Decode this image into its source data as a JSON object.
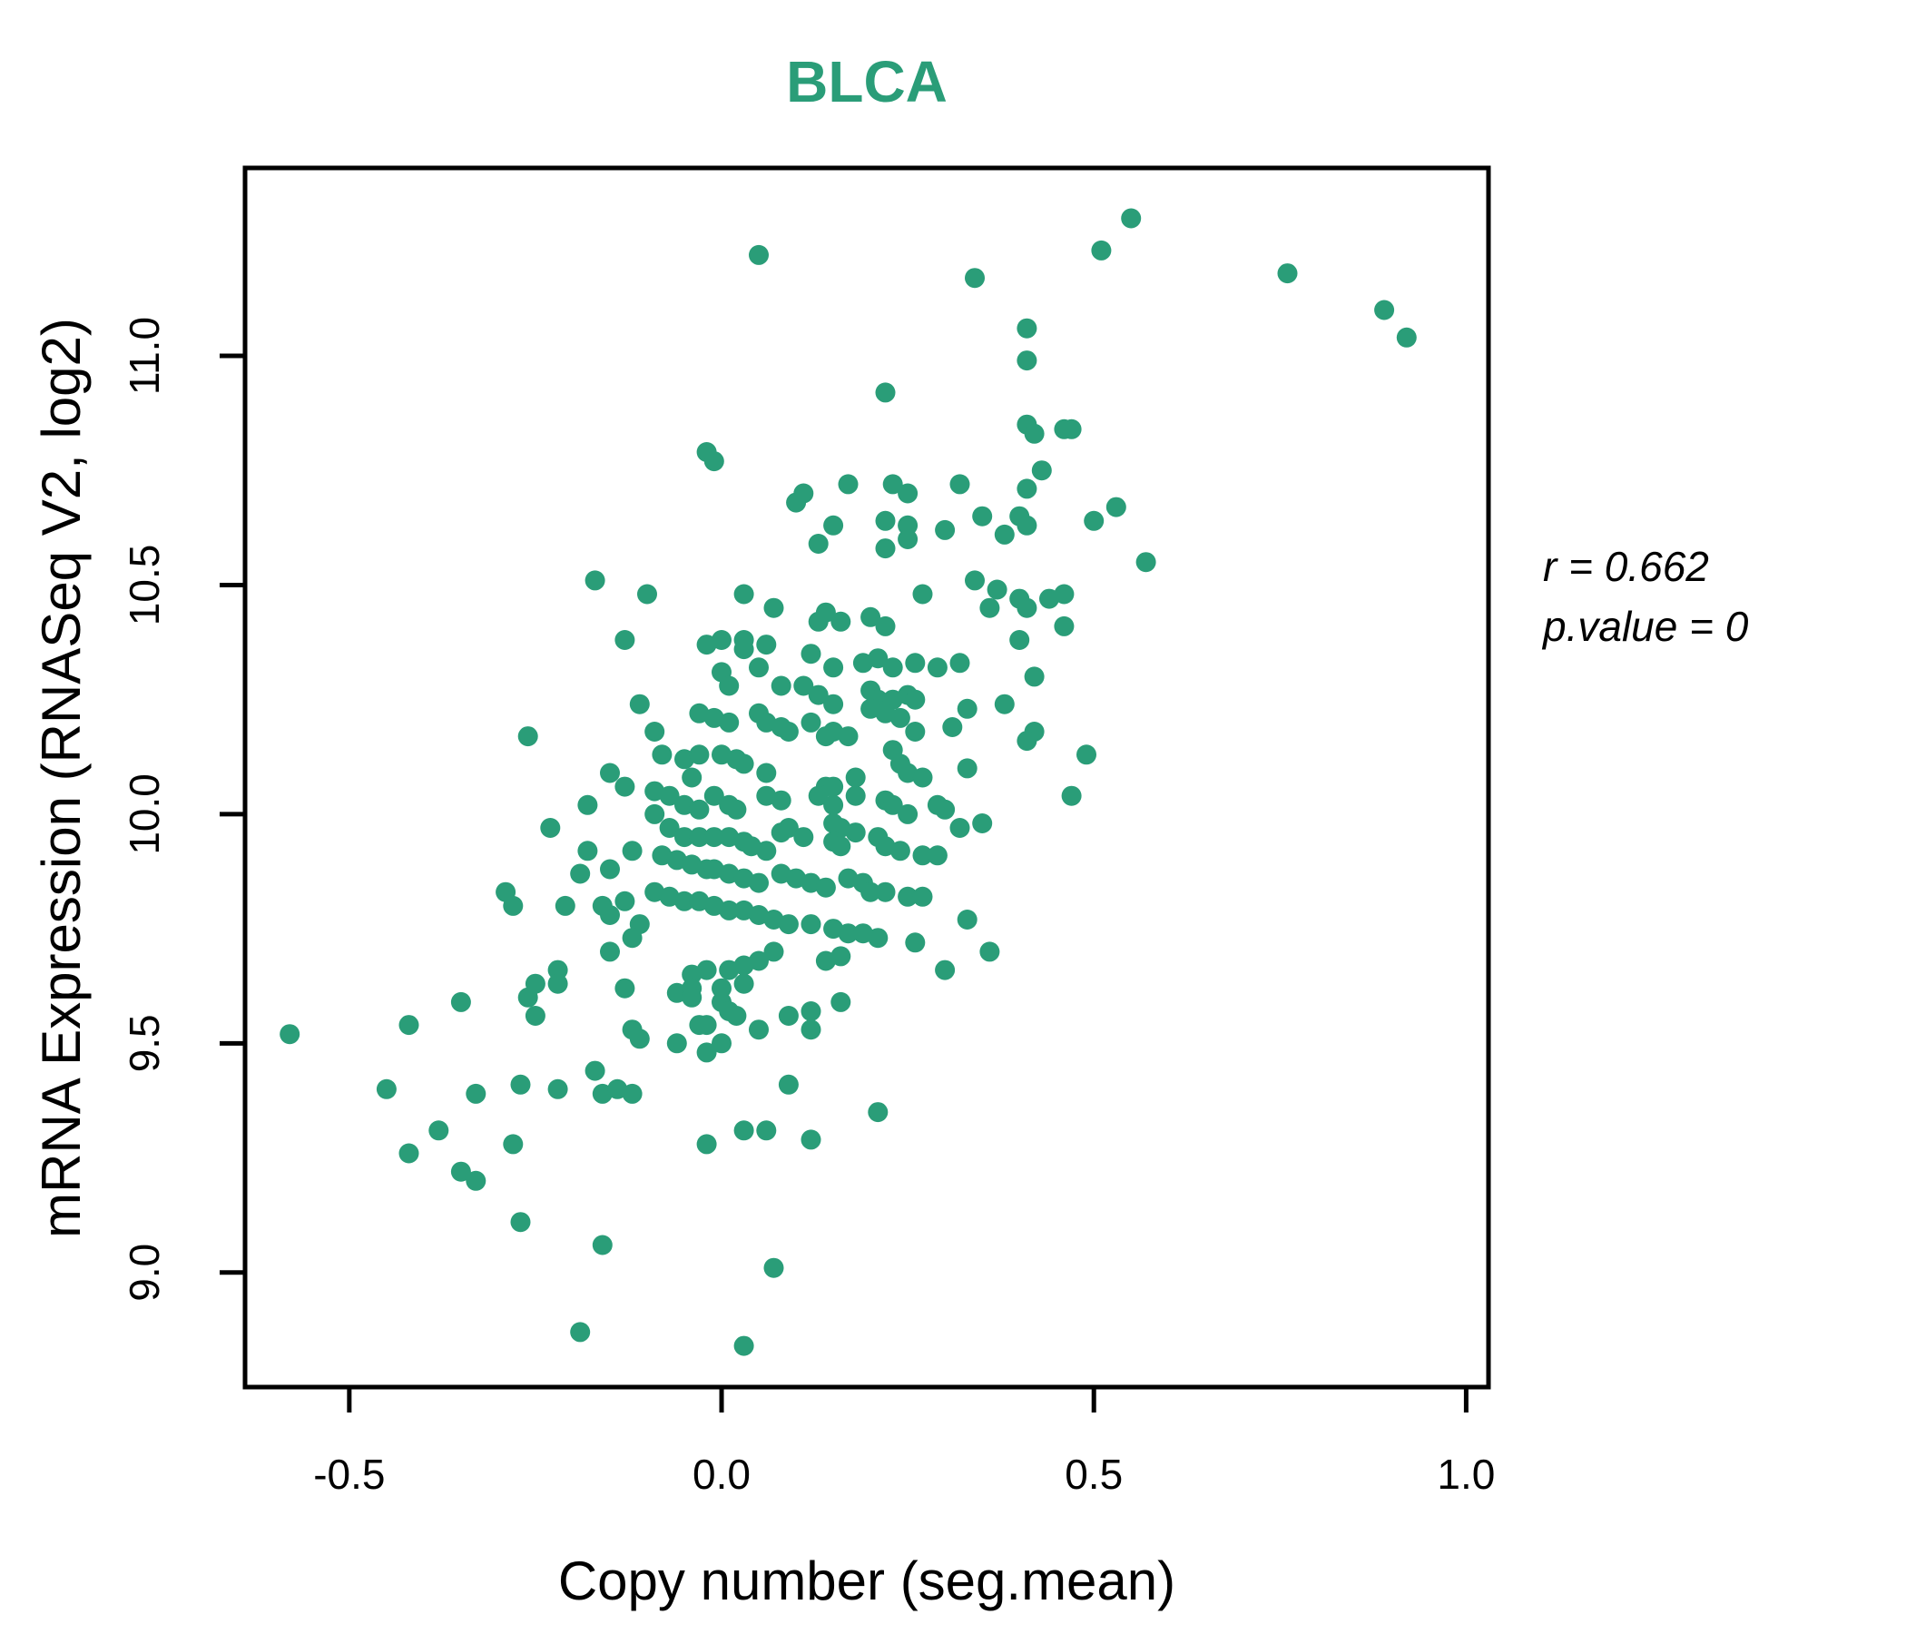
{
  "title": "BLCA",
  "accent_color": "#2a9d78",
  "text_color": "#000000",
  "annotation": {
    "line1": "r = 0.662",
    "line2": "p.value = 0"
  },
  "chart_data": {
    "type": "scatter",
    "title": "BLCA",
    "xlabel": "Copy number (seg.mean)",
    "ylabel": "mRNA Expression (RNASeq V2, log2)",
    "x_ticks": [
      -0.5,
      0.0,
      0.5,
      1.0
    ],
    "y_ticks": [
      9.0,
      9.5,
      10.0,
      10.5,
      11.0
    ],
    "xlim": [
      -0.64,
      1.03
    ],
    "ylim": [
      8.75,
      11.41
    ],
    "grid": false,
    "legend": null,
    "point_color": "#2a9d78",
    "point_radius_px": 11,
    "correlation_r": 0.662,
    "p_value": 0,
    "points": [
      [
        0.05,
        11.22
      ],
      [
        0.34,
        11.17
      ],
      [
        0.41,
        11.06
      ],
      [
        0.41,
        10.99
      ],
      [
        0.22,
        10.92
      ],
      [
        0.41,
        10.85
      ],
      [
        0.42,
        10.83
      ],
      [
        0.46,
        10.84
      ],
      [
        -0.02,
        10.79
      ],
      [
        -0.01,
        10.77
      ],
      [
        0.43,
        10.75
      ],
      [
        0.17,
        10.72
      ],
      [
        0.23,
        10.72
      ],
      [
        0.25,
        10.7
      ],
      [
        0.32,
        10.72
      ],
      [
        0.11,
        10.7
      ],
      [
        0.1,
        10.68
      ],
      [
        0.41,
        10.71
      ],
      [
        0.35,
        10.65
      ],
      [
        0.4,
        10.65
      ],
      [
        0.22,
        10.64
      ],
      [
        0.25,
        10.63
      ],
      [
        0.15,
        10.63
      ],
      [
        0.3,
        10.62
      ],
      [
        0.38,
        10.61
      ],
      [
        0.25,
        10.6
      ],
      [
        0.13,
        10.59
      ],
      [
        0.22,
        10.58
      ],
      [
        0.41,
        10.63
      ],
      [
        0.55,
        11.3
      ],
      [
        0.51,
        11.23
      ],
      [
        0.76,
        11.18
      ],
      [
        0.89,
        11.1
      ],
      [
        0.92,
        11.04
      ],
      [
        0.47,
        10.84
      ],
      [
        0.53,
        10.67
      ],
      [
        0.5,
        10.64
      ],
      [
        0.57,
        10.55
      ],
      [
        0.46,
        10.48
      ],
      [
        0.49,
        10.13
      ],
      [
        0.47,
        10.04
      ],
      [
        -0.17,
        10.51
      ],
      [
        -0.1,
        10.48
      ],
      [
        -0.13,
        10.38
      ],
      [
        -0.11,
        10.24
      ],
      [
        -0.26,
        10.17
      ],
      [
        -0.15,
        10.09
      ],
      [
        -0.13,
        10.06
      ],
      [
        -0.18,
        10.02
      ],
      [
        -0.23,
        9.97
      ],
      [
        -0.18,
        9.92
      ],
      [
        -0.15,
        9.88
      ],
      [
        -0.19,
        9.87
      ],
      [
        -0.29,
        9.83
      ],
      [
        -0.28,
        9.8
      ],
      [
        -0.21,
        9.8
      ],
      [
        -0.16,
        9.8
      ],
      [
        -0.15,
        9.78
      ],
      [
        -0.13,
        9.81
      ],
      [
        -0.12,
        9.92
      ],
      [
        -0.15,
        9.7
      ],
      [
        -0.22,
        9.66
      ],
      [
        -0.11,
        9.76
      ],
      [
        -0.12,
        9.73
      ],
      [
        0.03,
        10.48
      ],
      [
        0.07,
        10.45
      ],
      [
        0.14,
        10.44
      ],
      [
        0.13,
        10.42
      ],
      [
        0.16,
        10.42
      ],
      [
        0.2,
        10.43
      ],
      [
        0.22,
        10.41
      ],
      [
        0.27,
        10.48
      ],
      [
        0.34,
        10.51
      ],
      [
        0.37,
        10.49
      ],
      [
        0.4,
        10.47
      ],
      [
        0.41,
        10.45
      ],
      [
        0.36,
        10.45
      ],
      [
        0.44,
        10.47
      ],
      [
        0.46,
        10.41
      ],
      [
        0.4,
        10.38
      ],
      [
        0.0,
        10.38
      ],
      [
        0.03,
        10.38
      ],
      [
        0.03,
        10.36
      ],
      [
        -0.02,
        10.37
      ],
      [
        0.06,
        10.37
      ],
      [
        0.12,
        10.35
      ],
      [
        0.15,
        10.32
      ],
      [
        0.05,
        10.32
      ],
      [
        0.0,
        10.31
      ],
      [
        0.01,
        10.28
      ],
      [
        0.19,
        10.33
      ],
      [
        0.21,
        10.34
      ],
      [
        0.23,
        10.32
      ],
      [
        0.26,
        10.33
      ],
      [
        0.29,
        10.32
      ],
      [
        0.32,
        10.33
      ],
      [
        0.42,
        10.3
      ],
      [
        0.08,
        10.28
      ],
      [
        0.11,
        10.28
      ],
      [
        0.13,
        10.26
      ],
      [
        0.15,
        10.24
      ],
      [
        0.2,
        10.27
      ],
      [
        0.21,
        10.25
      ],
      [
        0.23,
        10.25
      ],
      [
        0.2,
        10.23
      ],
      [
        0.22,
        10.22
      ],
      [
        0.25,
        10.26
      ],
      [
        0.26,
        10.25
      ],
      [
        0.26,
        10.18
      ],
      [
        0.24,
        10.21
      ],
      [
        0.33,
        10.23
      ],
      [
        0.31,
        10.19
      ],
      [
        0.38,
        10.24
      ],
      [
        0.42,
        10.18
      ],
      [
        0.41,
        10.16
      ],
      [
        -0.03,
        10.22
      ],
      [
        -0.01,
        10.21
      ],
      [
        0.01,
        10.2
      ],
      [
        0.05,
        10.22
      ],
      [
        0.06,
        10.2
      ],
      [
        0.08,
        10.19
      ],
      [
        0.09,
        10.18
      ],
      [
        0.12,
        10.2
      ],
      [
        0.14,
        10.17
      ],
      [
        0.15,
        10.18
      ],
      [
        0.17,
        10.17
      ],
      [
        -0.09,
        10.18
      ],
      [
        -0.08,
        10.13
      ],
      [
        -0.05,
        10.12
      ],
      [
        -0.03,
        10.13
      ],
      [
        0.0,
        10.13
      ],
      [
        0.02,
        10.12
      ],
      [
        0.03,
        10.11
      ],
      [
        0.06,
        10.09
      ],
      [
        0.23,
        10.14
      ],
      [
        0.24,
        10.11
      ],
      [
        0.25,
        10.09
      ],
      [
        0.33,
        10.1
      ],
      [
        0.14,
        10.06
      ],
      [
        0.15,
        10.06
      ],
      [
        0.18,
        10.08
      ],
      [
        0.18,
        10.04
      ],
      [
        0.22,
        10.03
      ],
      [
        0.23,
        10.02
      ],
      [
        0.25,
        10.0
      ],
      [
        0.27,
        10.08
      ],
      [
        0.29,
        10.02
      ],
      [
        0.3,
        10.01
      ],
      [
        0.32,
        9.97
      ],
      [
        0.35,
        9.98
      ],
      [
        -0.04,
        10.08
      ],
      [
        -0.07,
        10.04
      ],
      [
        -0.05,
        10.02
      ],
      [
        -0.03,
        10.01
      ],
      [
        -0.01,
        10.04
      ],
      [
        0.01,
        10.02
      ],
      [
        0.02,
        10.01
      ],
      [
        -0.09,
        10.05
      ],
      [
        -0.09,
        10.0
      ],
      [
        -0.07,
        9.97
      ],
      [
        -0.05,
        9.95
      ],
      [
        -0.03,
        9.95
      ],
      [
        -0.01,
        9.95
      ],
      [
        0.01,
        9.95
      ],
      [
        0.03,
        9.94
      ],
      [
        0.04,
        9.93
      ],
      [
        0.06,
        9.92
      ],
      [
        0.08,
        9.96
      ],
      [
        0.09,
        9.97
      ],
      [
        0.11,
        9.95
      ],
      [
        0.13,
        10.04
      ],
      [
        0.15,
        10.02
      ],
      [
        0.08,
        10.03
      ],
      [
        0.06,
        10.04
      ],
      [
        0.15,
        9.98
      ],
      [
        0.16,
        9.97
      ],
      [
        0.18,
        9.96
      ],
      [
        0.15,
        9.94
      ],
      [
        0.16,
        9.93
      ],
      [
        0.21,
        9.95
      ],
      [
        0.22,
        9.93
      ],
      [
        0.24,
        9.92
      ],
      [
        0.27,
        9.91
      ],
      [
        0.29,
        9.91
      ],
      [
        -0.08,
        9.91
      ],
      [
        -0.06,
        9.9
      ],
      [
        -0.04,
        9.89
      ],
      [
        -0.02,
        9.88
      ],
      [
        -0.01,
        9.88
      ],
      [
        0.01,
        9.87
      ],
      [
        0.03,
        9.86
      ],
      [
        0.05,
        9.85
      ],
      [
        0.08,
        9.87
      ],
      [
        0.1,
        9.86
      ],
      [
        0.12,
        9.85
      ],
      [
        0.14,
        9.84
      ],
      [
        0.17,
        9.86
      ],
      [
        0.19,
        9.85
      ],
      [
        0.2,
        9.83
      ],
      [
        0.22,
        9.83
      ],
      [
        0.25,
        9.82
      ],
      [
        0.27,
        9.82
      ],
      [
        -0.09,
        9.83
      ],
      [
        -0.07,
        9.82
      ],
      [
        -0.05,
        9.81
      ],
      [
        -0.03,
        9.81
      ],
      [
        -0.01,
        9.8
      ],
      [
        0.01,
        9.79
      ],
      [
        0.03,
        9.79
      ],
      [
        0.05,
        9.78
      ],
      [
        0.07,
        9.77
      ],
      [
        0.09,
        9.76
      ],
      [
        0.12,
        9.76
      ],
      [
        0.15,
        9.75
      ],
      [
        0.17,
        9.74
      ],
      [
        0.19,
        9.74
      ],
      [
        0.21,
        9.73
      ],
      [
        0.26,
        9.72
      ],
      [
        0.33,
        9.77
      ],
      [
        0.36,
        9.7
      ],
      [
        0.3,
        9.66
      ],
      [
        0.16,
        9.69
      ],
      [
        0.14,
        9.68
      ],
      [
        0.07,
        9.7
      ],
      [
        0.05,
        9.68
      ],
      [
        0.03,
        9.67
      ],
      [
        0.01,
        9.66
      ],
      [
        -0.02,
        9.66
      ],
      [
        -0.04,
        9.65
      ],
      [
        -0.58,
        9.52
      ],
      [
        -0.42,
        9.54
      ],
      [
        -0.35,
        9.59
      ],
      [
        -0.26,
        9.6
      ],
      [
        -0.25,
        9.63
      ],
      [
        -0.22,
        9.63
      ],
      [
        -0.25,
        9.56
      ],
      [
        -0.13,
        9.62
      ],
      [
        -0.12,
        9.53
      ],
      [
        -0.11,
        9.51
      ],
      [
        -0.17,
        9.44
      ],
      [
        -0.45,
        9.4
      ],
      [
        -0.33,
        9.39
      ],
      [
        -0.27,
        9.41
      ],
      [
        -0.22,
        9.4
      ],
      [
        -0.16,
        9.39
      ],
      [
        -0.14,
        9.4
      ],
      [
        -0.12,
        9.39
      ],
      [
        -0.38,
        9.31
      ],
      [
        -0.42,
        9.26
      ],
      [
        -0.28,
        9.28
      ],
      [
        -0.35,
        9.22
      ],
      [
        -0.33,
        9.2
      ],
      [
        -0.27,
        9.11
      ],
      [
        -0.16,
        9.06
      ],
      [
        -0.19,
        8.87
      ],
      [
        -0.06,
        9.61
      ],
      [
        -0.04,
        9.62
      ],
      [
        0.0,
        9.62
      ],
      [
        0.03,
        9.63
      ],
      [
        -0.04,
        9.6
      ],
      [
        0.0,
        9.59
      ],
      [
        0.01,
        9.57
      ],
      [
        0.02,
        9.56
      ],
      [
        -0.03,
        9.54
      ],
      [
        -0.02,
        9.54
      ],
      [
        0.0,
        9.5
      ],
      [
        -0.06,
        9.5
      ],
      [
        -0.02,
        9.48
      ],
      [
        0.05,
        9.53
      ],
      [
        0.09,
        9.56
      ],
      [
        0.12,
        9.57
      ],
      [
        0.12,
        9.53
      ],
      [
        0.16,
        9.59
      ],
      [
        0.09,
        9.41
      ],
      [
        0.21,
        9.35
      ],
      [
        0.03,
        9.31
      ],
      [
        0.06,
        9.31
      ],
      [
        0.12,
        9.29
      ],
      [
        -0.02,
        9.28
      ],
      [
        0.07,
        9.01
      ],
      [
        0.03,
        8.84
      ]
    ]
  }
}
